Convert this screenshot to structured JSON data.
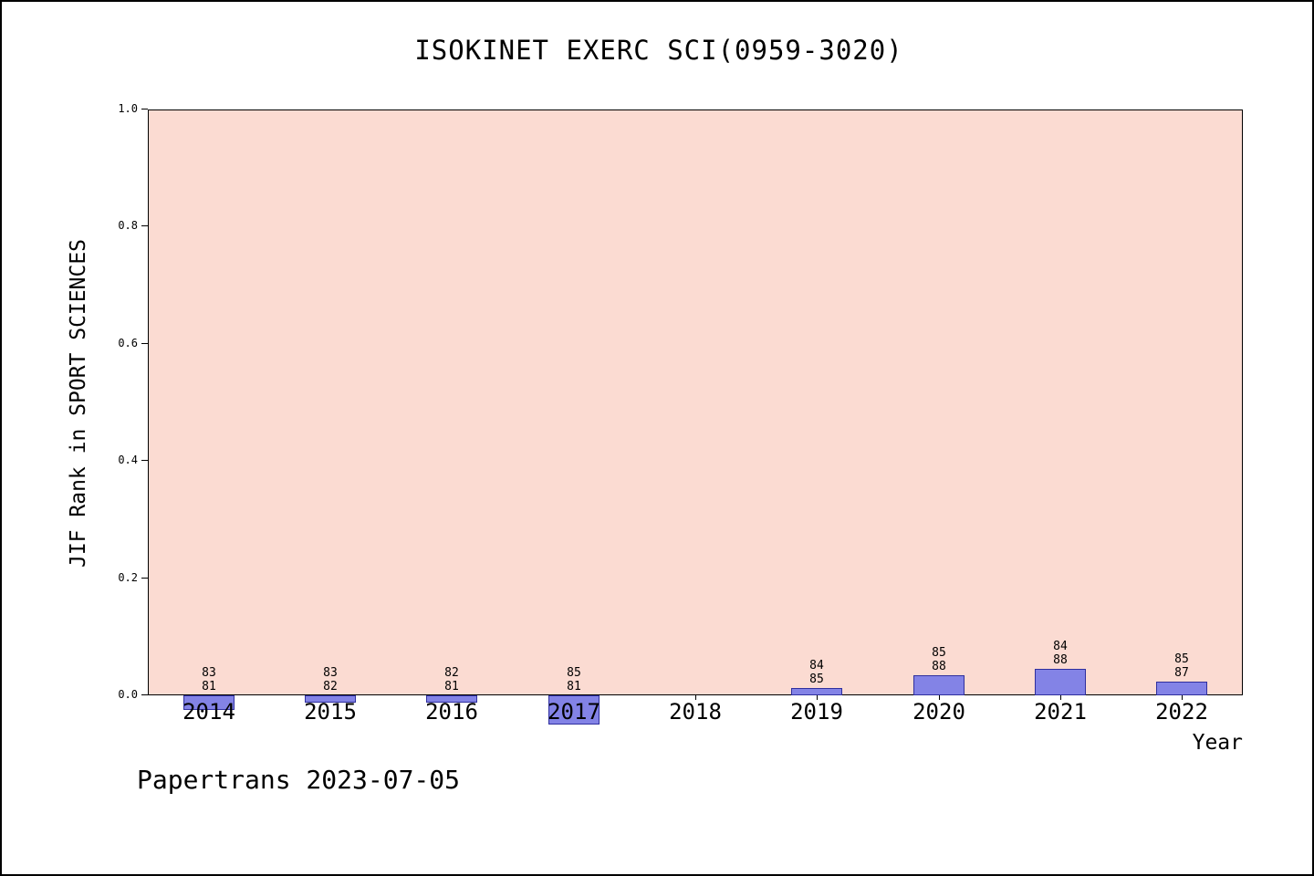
{
  "page": {
    "footer": "Papertrans 2023-07-05"
  },
  "chart_data": {
    "type": "bar",
    "title": "ISOKINET EXERC SCI(0959-3020)",
    "xlabel": "Year",
    "ylabel": "JIF Rank in SPORT SCIENCES",
    "ylim": [
      0.0,
      1.0
    ],
    "ytick_labels": [
      "0.0",
      "0.2",
      "0.4",
      "0.6",
      "0.8",
      "1.0"
    ],
    "grid": false,
    "legend": "none",
    "colors": {
      "plot_bg": "#fbdbd2",
      "bar_fill": "#8383e6",
      "bar_edge": "#2f2f9e"
    },
    "categories": [
      "2014",
      "2015",
      "2016",
      "2017",
      "2018",
      "2019",
      "2020",
      "2021",
      "2022"
    ],
    "bars": [
      {
        "year": "2014",
        "rank": 83,
        "total": 81,
        "value": -0.0247
      },
      {
        "year": "2015",
        "rank": 83,
        "total": 82,
        "value": -0.0122
      },
      {
        "year": "2016",
        "rank": 82,
        "total": 81,
        "value": -0.0123
      },
      {
        "year": "2017",
        "rank": 85,
        "total": 81,
        "value": -0.0494
      },
      {
        "year": "2018",
        "rank": null,
        "total": null,
        "value": null
      },
      {
        "year": "2019",
        "rank": 84,
        "total": 85,
        "value": 0.0118
      },
      {
        "year": "2020",
        "rank": 85,
        "total": 88,
        "value": 0.0341
      },
      {
        "year": "2021",
        "rank": 84,
        "total": 88,
        "value": 0.0455
      },
      {
        "year": "2022",
        "rank": 85,
        "total": 87,
        "value": 0.023
      }
    ]
  }
}
